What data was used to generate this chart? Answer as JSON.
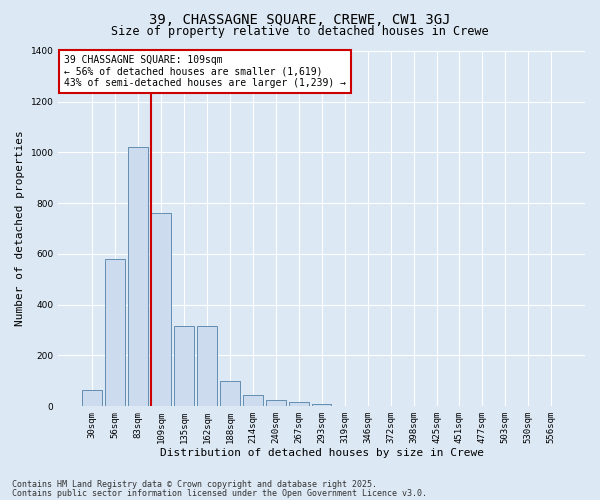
{
  "title": "39, CHASSAGNE SQUARE, CREWE, CW1 3GJ",
  "subtitle": "Size of property relative to detached houses in Crewe",
  "xlabel": "Distribution of detached houses by size in Crewe",
  "ylabel": "Number of detached properties",
  "categories": [
    "30sqm",
    "56sqm",
    "83sqm",
    "109sqm",
    "135sqm",
    "162sqm",
    "188sqm",
    "214sqm",
    "240sqm",
    "267sqm",
    "293sqm",
    "319sqm",
    "346sqm",
    "372sqm",
    "398sqm",
    "425sqm",
    "451sqm",
    "477sqm",
    "503sqm",
    "530sqm",
    "556sqm"
  ],
  "values": [
    65,
    580,
    1020,
    760,
    315,
    315,
    100,
    45,
    25,
    15,
    10,
    2,
    0,
    0,
    0,
    0,
    0,
    0,
    0,
    0,
    0
  ],
  "bar_color": "#ccdcee",
  "bar_edge_color": "#5080a8",
  "vline_index": 3,
  "vline_color": "#cc0000",
  "ylim": [
    0,
    1400
  ],
  "yticks": [
    0,
    200,
    400,
    600,
    800,
    1000,
    1200,
    1400
  ],
  "annotation_text": "39 CHASSAGNE SQUARE: 109sqm\n← 56% of detached houses are smaller (1,619)\n43% of semi-detached houses are larger (1,239) →",
  "annotation_box_color": "#cc0000",
  "footer_line1": "Contains HM Land Registry data © Crown copyright and database right 2025.",
  "footer_line2": "Contains public sector information licensed under the Open Government Licence v3.0.",
  "bg_color": "#dce8f4",
  "plot_bg_color": "#dce8f4",
  "grid_color": "#ffffff",
  "title_fontsize": 10,
  "subtitle_fontsize": 8.5,
  "ylabel_fontsize": 8,
  "xlabel_fontsize": 8,
  "tick_fontsize": 6.5,
  "annot_fontsize": 7,
  "footer_fontsize": 6
}
